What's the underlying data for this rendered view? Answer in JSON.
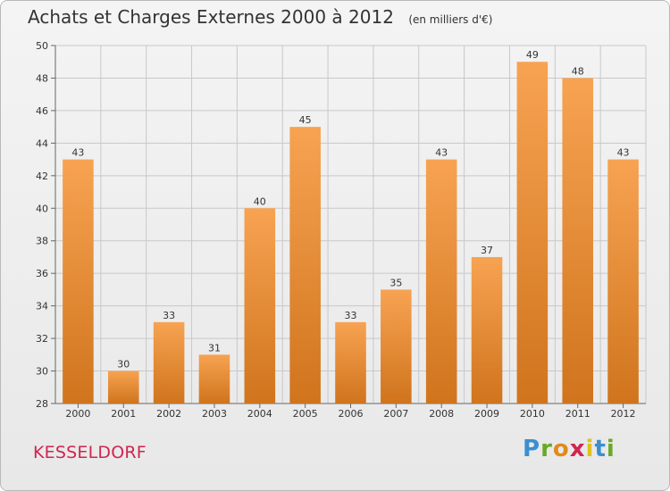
{
  "header": {
    "title": "Achats et Charges Externes 2000 à 2012",
    "subtitle": "(en milliers d'€)"
  },
  "footer": {
    "commune": "KESSELDORF",
    "logo": [
      "P",
      "r",
      "o",
      "x",
      "i",
      "t",
      "i"
    ],
    "logo_colors": [
      "#3a8fd0",
      "#6aa829",
      "#e08a1e",
      "#d0254f",
      "#e0c020",
      "#3a8fd0",
      "#6aa829"
    ]
  },
  "colors": {
    "bar_light": "#f7a352",
    "bar_dark": "#d0741d",
    "grid": "#c8c8c8",
    "axis": "#666666"
  },
  "chart_data": {
    "type": "bar",
    "title": "Achats et Charges Externes 2000 à 2012",
    "subtitle": "(en milliers d'€)",
    "categories": [
      "2000",
      "2001",
      "2002",
      "2003",
      "2004",
      "2005",
      "2006",
      "2007",
      "2008",
      "2009",
      "2010",
      "2011",
      "2012"
    ],
    "values": [
      43,
      30,
      33,
      31,
      40,
      45,
      33,
      35,
      43,
      37,
      49,
      48,
      43
    ],
    "ylim": [
      28,
      50
    ],
    "yticks": [
      28,
      30,
      32,
      34,
      36,
      38,
      40,
      42,
      44,
      46,
      48,
      50
    ],
    "grid": true,
    "xlabel": "",
    "ylabel": ""
  }
}
